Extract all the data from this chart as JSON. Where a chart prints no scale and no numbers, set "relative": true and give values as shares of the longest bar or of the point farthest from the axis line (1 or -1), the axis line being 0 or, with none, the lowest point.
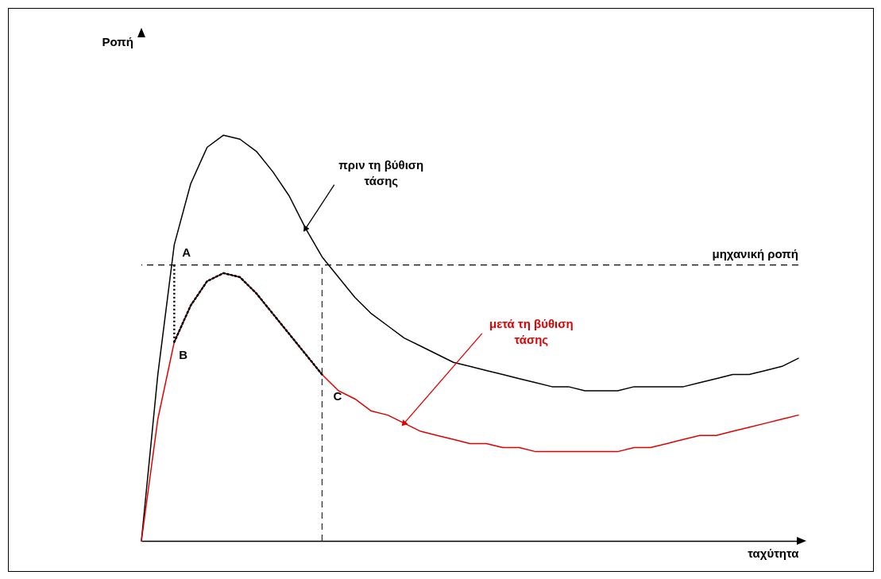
{
  "chart_data": {
    "type": "line",
    "relative": true,
    "xlabel": "ταχύτητα",
    "categories": [
      null,
      null,
      null,
      null,
      null,
      null,
      null,
      null,
      null,
      null,
      null,
      null,
      null,
      null,
      null,
      null,
      null,
      null,
      null,
      null,
      null,
      null,
      null,
      null,
      null,
      null,
      null,
      null,
      null,
      null,
      null,
      null,
      null,
      null,
      null,
      null,
      null,
      null,
      null,
      null,
      null
    ],
    "series": [
      {
        "color": "#000000",
        "values": [
          0,
          0.41,
          0.73,
          0.88,
          0.97,
          1.0,
          0.99,
          0.96,
          0.91,
          0.85,
          0.77,
          0.7,
          0.65,
          0.6,
          0.56,
          0.53,
          0.5,
          0.48,
          0.46,
          0.44,
          0.43,
          0.42,
          0.41,
          0.4,
          0.39,
          0.38,
          0.38,
          0.37,
          0.37,
          0.37,
          0.38,
          0.38,
          0.38,
          0.38,
          0.39,
          0.4,
          0.41,
          0.41,
          0.42,
          0.43,
          0.45
        ]
      },
      {
        "color": "#e00000",
        "values": [
          0,
          0.3,
          0.49,
          0.58,
          0.64,
          0.66,
          0.65,
          0.61,
          0.56,
          0.51,
          0.46,
          0.41,
          0.37,
          0.35,
          0.32,
          0.31,
          0.29,
          0.27,
          0.26,
          0.25,
          0.24,
          0.24,
          0.23,
          0.23,
          0.22,
          0.22,
          0.22,
          0.22,
          0.22,
          0.22,
          0.23,
          0.23,
          0.24,
          0.25,
          0.26,
          0.26,
          0.27,
          0.28,
          0.29,
          0.3,
          0.31
        ]
      },
      {
        "color": "#000000",
        "line_style": "dotted",
        "values": [
          null,
          null,
          0.49,
          0.58,
          0.64,
          0.66,
          0.65,
          0.61,
          0.56,
          0.51,
          0.46,
          0.41,
          null,
          null,
          null,
          null,
          null,
          null,
          null,
          null,
          null,
          null,
          null,
          null,
          null,
          null,
          null,
          null,
          null,
          null,
          null,
          null,
          null,
          null,
          null,
          null,
          null,
          null,
          null,
          null,
          null
        ]
      }
    ],
    "ref_lines": [
      {
        "axis": "y",
        "value": 0.68,
        "label": "μηχανική ροπή",
        "line_style": "dashed",
        "color": "#000000"
      }
    ],
    "annotations": [
      "πριν τη βύθιση\nτάσης",
      "μετά τη βύθιση\nτάσης",
      "A",
      "B",
      "C",
      "Ροπή"
    ]
  }
}
